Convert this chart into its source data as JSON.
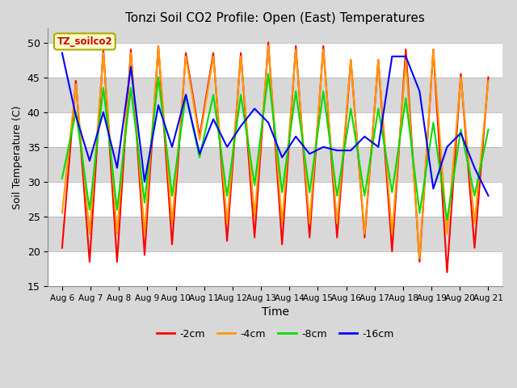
{
  "title": "Tonzi Soil CO2 Profile: Open (East) Temperatures",
  "xlabel": "Time",
  "ylabel": "Soil Temperature (C)",
  "ylim": [
    15,
    52
  ],
  "yticks": [
    15,
    20,
    25,
    30,
    35,
    40,
    45,
    50
  ],
  "legend_label": "TZ_soilco2",
  "series_labels": [
    "-2cm",
    "-4cm",
    "-8cm",
    "-16cm"
  ],
  "series_colors": [
    "#ff0000",
    "#ff9900",
    "#00dd00",
    "#0000ff"
  ],
  "line_width": 1.5,
  "background_color": "#d8d8d8",
  "plot_bg_color": "#d8d8d8",
  "grid_color": "#ffffff",
  "x_labels": [
    "Aug 6",
    "Aug 7",
    "Aug 8",
    "Aug 9",
    "Aug 10",
    "Aug 11",
    "Aug 12",
    "Aug 13",
    "Aug 14",
    "Aug 15",
    "Aug 16",
    "Aug 17",
    "Aug 18",
    "Aug 19",
    "Aug 20",
    "Aug 21"
  ],
  "num_days": 16,
  "t_2cm": [
    20.5,
    44.5,
    18.5,
    49.0,
    18.5,
    49.0,
    19.5,
    49.5,
    21.0,
    48.5,
    36.5,
    48.5,
    21.5,
    48.5,
    22.0,
    50.0,
    21.0,
    49.5,
    22.0,
    49.5,
    22.0,
    47.5,
    22.0,
    47.5,
    20.0,
    49.0,
    18.5,
    49.0,
    17.0,
    45.5,
    20.5,
    45.0
  ],
  "t_4cm": [
    25.5,
    44.0,
    22.5,
    48.5,
    22.5,
    48.5,
    22.5,
    49.5,
    24.0,
    48.0,
    36.0,
    48.0,
    24.0,
    48.0,
    25.0,
    49.5,
    24.0,
    49.0,
    24.0,
    49.0,
    24.0,
    47.5,
    22.5,
    47.5,
    22.5,
    47.5,
    19.0,
    49.0,
    22.5,
    45.0,
    24.0,
    44.5
  ],
  "t_8cm": [
    30.5,
    40.0,
    26.0,
    43.5,
    26.0,
    43.5,
    27.0,
    45.0,
    28.0,
    42.5,
    33.5,
    42.5,
    28.0,
    42.5,
    29.5,
    45.5,
    28.5,
    43.0,
    28.5,
    43.0,
    28.0,
    40.5,
    28.0,
    40.5,
    28.5,
    42.0,
    25.5,
    38.5,
    24.5,
    37.5,
    28.0,
    37.5
  ],
  "t_16cm": [
    48.5,
    39.5,
    33.0,
    40.0,
    32.0,
    46.5,
    30.0,
    41.0,
    35.0,
    42.5,
    34.0,
    39.0,
    35.0,
    38.0,
    40.5,
    38.5,
    33.5,
    36.5,
    34.0,
    35.0,
    34.5,
    34.5,
    36.5,
    35.0,
    48.0,
    48.0,
    43.0,
    29.0,
    35.0,
    37.0,
    32.0,
    28.0
  ]
}
